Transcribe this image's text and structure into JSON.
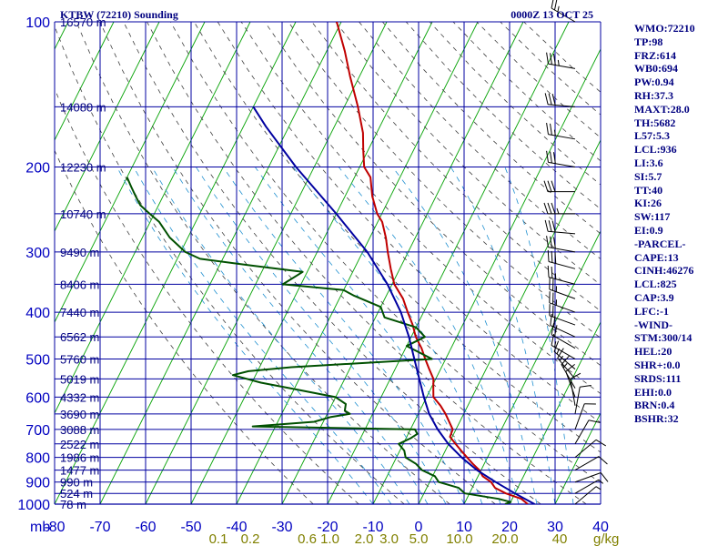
{
  "header": {
    "station": "KTBW (72210) Sounding",
    "time": "0000Z 13 OCT 25"
  },
  "indices": [
    "WMO:72210",
    "TP:98",
    "FRZ:614",
    "WB0:694",
    "PW:0.94",
    "RH:37.3",
    "MAXT:28.0",
    "TH:5682",
    "L57:5.3",
    "LCL:936",
    "LI:3.6",
    "SI:5.7",
    "TT:40",
    "KI:26",
    "SW:117",
    "EI:0.9",
    "-PARCEL-",
    "CAPE:13",
    "CINH:46276",
    "LCL:825",
    "CAP:3.9",
    "LFC:-1",
    "-WIND-",
    "STM:300/14",
    "HEL:20",
    "SHR+:0.0",
    "SRDS:111",
    "EHI:0.0",
    "BRN:0.4",
    "BSHR:32"
  ],
  "colors": {
    "temperature": "#c00000",
    "dewpoint": "#005000",
    "parcel": "#0000a0",
    "grid": "#0000a0",
    "isotherm": "#00a000",
    "dry_adiabat": "#404040",
    "moist_adiabat": "#2090d0",
    "mixing_ratio_labels": "#808000"
  },
  "chart_data": {
    "type": "line",
    "title": "KTBW (72210) Sounding",
    "subtitle": "0000Z 13 OCT 25",
    "y_unit_label": "mb",
    "x_unit_label": "g/kg",
    "y_scale": "log",
    "ylim": [
      1000,
      100
    ],
    "xlim": [
      -80,
      40
    ],
    "pressure_ticks": [
      100,
      200,
      300,
      400,
      500,
      600,
      700,
      800,
      900,
      1000
    ],
    "temperature_ticks": [
      -80,
      -70,
      -60,
      -50,
      -40,
      -30,
      -20,
      -10,
      0,
      10,
      20,
      30,
      40
    ],
    "mixing_ratio_labels": [
      {
        "value": 0.1,
        "label": "0.1",
        "x": -44
      },
      {
        "value": 0.2,
        "label": "0.2",
        "x": -37
      },
      {
        "value": 0.6,
        "label": "0.6",
        "x": -24.5
      },
      {
        "value": 1.0,
        "label": "1.0",
        "x": -19.5
      },
      {
        "value": 2.0,
        "label": "2.0",
        "x": -12
      },
      {
        "value": 3.0,
        "label": "3.0",
        "x": -6.5
      },
      {
        "value": 5.0,
        "label": "5.0",
        "x": 0
      },
      {
        "value": 10.0,
        "label": "10.0",
        "x": 9
      },
      {
        "value": 20.0,
        "label": "20.0",
        "x": 19
      },
      {
        "value": 40.0,
        "label": "40",
        "x": 31
      }
    ],
    "heights": [
      {
        "p": 100,
        "label": "16570 m"
      },
      {
        "p": 150,
        "label": "14080 m"
      },
      {
        "p": 200,
        "label": "12230 m"
      },
      {
        "p": 250,
        "label": "10740 m"
      },
      {
        "p": 300,
        "label": "9490 m"
      },
      {
        "p": 350,
        "label": "8406 m"
      },
      {
        "p": 400,
        "label": "7440 m"
      },
      {
        "p": 450,
        "label": "6562 m"
      },
      {
        "p": 500,
        "label": "5760 m"
      },
      {
        "p": 550,
        "label": "5019 m"
      },
      {
        "p": 600,
        "label": "4332 m"
      },
      {
        "p": 650,
        "label": "3690 m"
      },
      {
        "p": 700,
        "label": "3088 m"
      },
      {
        "p": 750,
        "label": "2522 m"
      },
      {
        "p": 800,
        "label": "1986 m"
      },
      {
        "p": 850,
        "label": "1477 m"
      },
      {
        "p": 900,
        "label": "990 m"
      },
      {
        "p": 950,
        "label": "524 m"
      },
      {
        "p": 1000,
        "label": "78 m"
      }
    ],
    "series": [
      {
        "points": [
          [
            1000,
            24
          ],
          [
            975,
            22
          ],
          [
            950,
            18
          ],
          [
            925,
            15
          ],
          [
            900,
            13.5
          ],
          [
            875,
            11
          ],
          [
            850,
            9.6
          ],
          [
            825,
            7.5
          ],
          [
            800,
            5.5
          ],
          [
            775,
            3.5
          ],
          [
            750,
            1.5
          ],
          [
            725,
            -0.5
          ],
          [
            700,
            -0.7
          ],
          [
            680,
            -2
          ],
          [
            650,
            -4
          ],
          [
            625,
            -6
          ],
          [
            600,
            -8.5
          ],
          [
            575,
            -9.5
          ],
          [
            550,
            -10.5
          ],
          [
            525,
            -12.5
          ],
          [
            500,
            -14.5
          ],
          [
            475,
            -16.5
          ],
          [
            450,
            -19
          ],
          [
            425,
            -21
          ],
          [
            400,
            -23.5
          ],
          [
            375,
            -26
          ],
          [
            350,
            -29.5
          ],
          [
            325,
            -32
          ],
          [
            300,
            -34.5
          ],
          [
            280,
            -36.5
          ],
          [
            260,
            -39
          ],
          [
            250,
            -41
          ],
          [
            230,
            -44
          ],
          [
            210,
            -46.5
          ],
          [
            200,
            -49
          ],
          [
            185,
            -51
          ],
          [
            170,
            -53
          ],
          [
            150,
            -57
          ],
          [
            130,
            -62
          ],
          [
            115,
            -66
          ],
          [
            100,
            -71
          ]
        ]
      },
      {
        "points": [
          [
            1000,
            19
          ],
          [
            990,
            20
          ],
          [
            975,
            17
          ],
          [
            950,
            9
          ],
          [
            925,
            7
          ],
          [
            900,
            2
          ],
          [
            875,
            0.5
          ],
          [
            850,
            -3
          ],
          [
            825,
            -5
          ],
          [
            800,
            -8
          ],
          [
            775,
            -9
          ],
          [
            750,
            -11
          ],
          [
            730,
            -9
          ],
          [
            715,
            -8
          ],
          [
            700,
            -9
          ],
          [
            690,
            -45
          ],
          [
            675,
            -32
          ],
          [
            660,
            -29
          ],
          [
            650,
            -25
          ],
          [
            640,
            -26.5
          ],
          [
            620,
            -27
          ],
          [
            600,
            -30
          ],
          [
            575,
            -41
          ],
          [
            560,
            -48
          ],
          [
            540,
            -55
          ],
          [
            530,
            -52
          ],
          [
            520,
            -43
          ],
          [
            500,
            -13
          ],
          [
            470,
            -20
          ],
          [
            450,
            -17
          ],
          [
            430,
            -20
          ],
          [
            410,
            -28
          ],
          [
            390,
            -30
          ],
          [
            370,
            -37
          ],
          [
            360,
            -40
          ],
          [
            350,
            -54
          ],
          [
            330,
            -51
          ],
          [
            320,
            -63
          ],
          [
            310,
            -75
          ],
          [
            300,
            -79
          ],
          [
            280,
            -84
          ],
          [
            260,
            -88
          ],
          [
            250,
            -91
          ],
          [
            240,
            -94
          ],
          [
            230,
            -96
          ],
          [
            220,
            -98
          ],
          [
            210,
            -100
          ]
        ]
      },
      {
        "points": [
          [
            1000,
            25.5
          ],
          [
            950,
            20
          ],
          [
            900,
            14.5
          ],
          [
            850,
            9.1
          ],
          [
            800,
            4.3
          ],
          [
            750,
            -0.1
          ],
          [
            700,
            -4
          ],
          [
            650,
            -7.6
          ],
          [
            600,
            -10.6
          ],
          [
            550,
            -13.6
          ],
          [
            500,
            -16.9
          ],
          [
            450,
            -20.5
          ],
          [
            400,
            -25
          ],
          [
            350,
            -31
          ],
          [
            300,
            -39
          ],
          [
            250,
            -50
          ],
          [
            200,
            -64
          ],
          [
            165,
            -75
          ],
          [
            150,
            -80
          ]
        ]
      }
    ],
    "wind_barbs": [
      {
        "p": 100,
        "dir": 300,
        "spd": 25
      },
      {
        "p": 125,
        "dir": 280,
        "spd": 35
      },
      {
        "p": 150,
        "dir": 275,
        "spd": 30
      },
      {
        "p": 175,
        "dir": 280,
        "spd": 25
      },
      {
        "p": 200,
        "dir": 280,
        "spd": 30
      },
      {
        "p": 225,
        "dir": 270,
        "spd": 30
      },
      {
        "p": 250,
        "dir": 270,
        "spd": 35
      },
      {
        "p": 275,
        "dir": 275,
        "spd": 30
      },
      {
        "p": 300,
        "dir": 280,
        "spd": 30
      },
      {
        "p": 325,
        "dir": 285,
        "spd": 30
      },
      {
        "p": 350,
        "dir": 285,
        "spd": 25
      },
      {
        "p": 375,
        "dir": 290,
        "spd": 25
      },
      {
        "p": 400,
        "dir": 290,
        "spd": 25
      },
      {
        "p": 425,
        "dir": 290,
        "spd": 20
      },
      {
        "p": 450,
        "dir": 295,
        "spd": 20
      },
      {
        "p": 475,
        "dir": 300,
        "spd": 20
      },
      {
        "p": 500,
        "dir": 300,
        "spd": 15
      },
      {
        "p": 525,
        "dir": 310,
        "spd": 15
      },
      {
        "p": 550,
        "dir": 320,
        "spd": 15
      },
      {
        "p": 575,
        "dir": 330,
        "spd": 15
      },
      {
        "p": 600,
        "dir": 340,
        "spd": 10
      },
      {
        "p": 625,
        "dir": 350,
        "spd": 10
      },
      {
        "p": 650,
        "dir": 10,
        "spd": 10
      },
      {
        "p": 700,
        "dir": 20,
        "spd": 10
      },
      {
        "p": 750,
        "dir": 30,
        "spd": 10
      },
      {
        "p": 800,
        "dir": 50,
        "spd": 10
      },
      {
        "p": 850,
        "dir": 60,
        "spd": 10
      },
      {
        "p": 900,
        "dir": 70,
        "spd": 10
      },
      {
        "p": 950,
        "dir": 60,
        "spd": 5
      },
      {
        "p": 1000,
        "dir": 50,
        "spd": 5
      }
    ]
  }
}
